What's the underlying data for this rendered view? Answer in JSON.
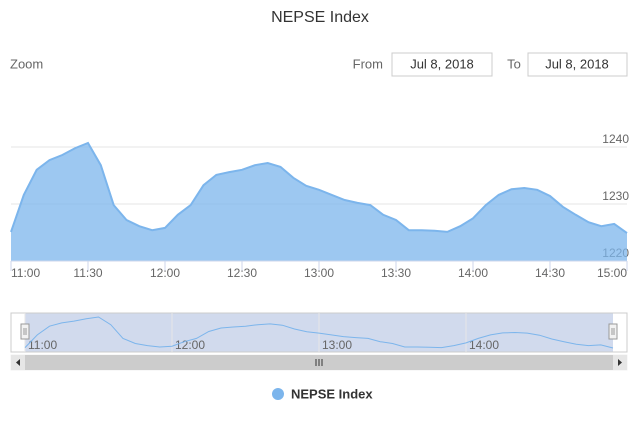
{
  "chart_data": {
    "type": "area",
    "title": "NEPSE Index",
    "range_selector": {
      "zoom": "Zoom",
      "from_label": "From",
      "from": "Jul 8, 2018",
      "to_label": "To",
      "to": "Jul 8, 2018"
    },
    "x": [
      "11:00",
      "11:05",
      "11:10",
      "11:15",
      "11:20",
      "11:25",
      "11:30",
      "11:35",
      "11:40",
      "11:45",
      "11:50",
      "11:55",
      "12:00",
      "12:05",
      "12:10",
      "12:15",
      "12:20",
      "12:25",
      "12:30",
      "12:35",
      "12:40",
      "12:45",
      "12:50",
      "12:55",
      "13:00",
      "13:05",
      "13:10",
      "13:15",
      "13:20",
      "13:25",
      "13:30",
      "13:35",
      "13:40",
      "13:45",
      "13:50",
      "13:55",
      "14:00",
      "14:05",
      "14:10",
      "14:15",
      "14:20",
      "14:25",
      "14:30",
      "14:35",
      "14:40",
      "14:45",
      "14:50",
      "14:55",
      "15:00"
    ],
    "series": [
      {
        "name": "NEPSE Index",
        "color": "#7cb5ec",
        "values": [
          1225.1,
          1231.6,
          1236,
          1237.7,
          1238.6,
          1239.8,
          1240.7,
          1236.8,
          1229.8,
          1227.2,
          1226.1,
          1225.4,
          1225.8,
          1228.1,
          1229.8,
          1233.3,
          1235.1,
          1235.6,
          1236,
          1236.8,
          1237.2,
          1236.5,
          1234.6,
          1233.2,
          1232.5,
          1231.6,
          1230.7,
          1230.2,
          1229.8,
          1228.1,
          1227.2,
          1225.4,
          1225.4,
          1225.3,
          1225.1,
          1226.1,
          1227.5,
          1229.8,
          1231.6,
          1232.6,
          1232.8,
          1232.5,
          1231.4,
          1229.5,
          1228.1,
          1226.8,
          1226.1,
          1226.5,
          1224.9
        ]
      }
    ],
    "xlim": [
      "11:00",
      "15:00"
    ],
    "xticks": [
      "11:00",
      "11:30",
      "12:00",
      "12:30",
      "13:00",
      "13:30",
      "14:00",
      "14:30",
      "15:00"
    ],
    "ylim": [
      1220,
      1250
    ],
    "yticks": [
      1220,
      1230,
      1240
    ],
    "grid": true,
    "navigator": {
      "xticks": [
        "11:00",
        "12:00",
        "13:00",
        "14:00"
      ]
    },
    "legend": "bottom"
  }
}
